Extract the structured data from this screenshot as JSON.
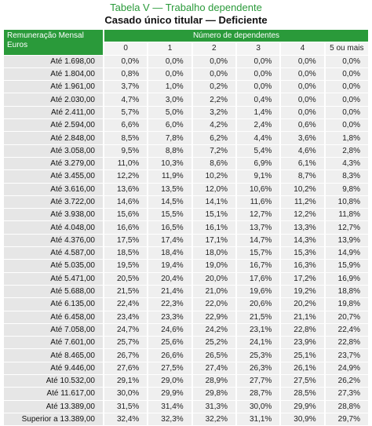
{
  "title": "Tabela V — Trabalho dependente",
  "subtitle": "Casado único titular — Deficiente",
  "table": {
    "row_header": "Remuneração Mensal Euros",
    "group_header": "Número de dependentes",
    "columns": [
      "0",
      "1",
      "2",
      "3",
      "4",
      "5 ou mais"
    ],
    "rows": [
      [
        "Até 1.698,00",
        "0,0%",
        "0,0%",
        "0,0%",
        "0,0%",
        "0,0%",
        "0,0%"
      ],
      [
        "Até 1.804,00",
        "0,8%",
        "0,0%",
        "0,0%",
        "0,0%",
        "0,0%",
        "0,0%"
      ],
      [
        "Até 1.961,00",
        "3,7%",
        "1,0%",
        "0,2%",
        "0,0%",
        "0,0%",
        "0,0%"
      ],
      [
        "Até 2.030,00",
        "4,7%",
        "3,0%",
        "2,2%",
        "0,4%",
        "0,0%",
        "0,0%"
      ],
      [
        "Até 2.411,00",
        "5,7%",
        "5,0%",
        "3,2%",
        "1,4%",
        "0,0%",
        "0,0%"
      ],
      [
        "Até 2.594,00",
        "6,6%",
        "6,0%",
        "4,2%",
        "2,4%",
        "0,6%",
        "0,0%"
      ],
      [
        "Até 2.848,00",
        "8,5%",
        "7,8%",
        "6,2%",
        "4,4%",
        "3,6%",
        "1,8%"
      ],
      [
        "Até 3.058,00",
        "9,5%",
        "8,8%",
        "7,2%",
        "5,4%",
        "4,6%",
        "2,8%"
      ],
      [
        "Até 3.279,00",
        "11,0%",
        "10,3%",
        "8,6%",
        "6,9%",
        "6,1%",
        "4,3%"
      ],
      [
        "Até 3.455,00",
        "12,2%",
        "11,9%",
        "10,2%",
        "9,1%",
        "8,7%",
        "8,3%"
      ],
      [
        "Até 3.616,00",
        "13,6%",
        "13,5%",
        "12,0%",
        "10,6%",
        "10,2%",
        "9,8%"
      ],
      [
        "Até 3.722,00",
        "14,6%",
        "14,5%",
        "14,1%",
        "11,6%",
        "11,2%",
        "10,8%"
      ],
      [
        "Até 3.938,00",
        "15,6%",
        "15,5%",
        "15,1%",
        "12,7%",
        "12,2%",
        "11,8%"
      ],
      [
        "Até 4.048,00",
        "16,6%",
        "16,5%",
        "16,1%",
        "13,7%",
        "13,3%",
        "12,7%"
      ],
      [
        "Até 4.376,00",
        "17,5%",
        "17,4%",
        "17,1%",
        "14,7%",
        "14,3%",
        "13,9%"
      ],
      [
        "Até 4.587,00",
        "18,5%",
        "18,4%",
        "18,0%",
        "15,7%",
        "15,3%",
        "14,9%"
      ],
      [
        "Até 5.035,00",
        "19,5%",
        "19,4%",
        "19,0%",
        "16,7%",
        "16,3%",
        "15,9%"
      ],
      [
        "Até 5.471,00",
        "20,5%",
        "20,4%",
        "20,0%",
        "17,6%",
        "17,2%",
        "16,9%"
      ],
      [
        "Até 5.688,00",
        "21,5%",
        "21,4%",
        "21,0%",
        "19,6%",
        "19,2%",
        "18,8%"
      ],
      [
        "Até 6.135,00",
        "22,4%",
        "22,3%",
        "22,0%",
        "20,6%",
        "20,2%",
        "19,8%"
      ],
      [
        "Até 6.458,00",
        "23,4%",
        "23,3%",
        "22,9%",
        "21,5%",
        "21,1%",
        "20,7%"
      ],
      [
        "Até 7.058,00",
        "24,7%",
        "24,6%",
        "24,2%",
        "23,1%",
        "22,8%",
        "22,4%"
      ],
      [
        "Até 7.601,00",
        "25,7%",
        "25,6%",
        "25,2%",
        "24,1%",
        "23,9%",
        "22,8%"
      ],
      [
        "Até 8.465,00",
        "26,7%",
        "26,6%",
        "26,5%",
        "25,3%",
        "25,1%",
        "23,7%"
      ],
      [
        "Até 9.446,00",
        "27,6%",
        "27,5%",
        "27,4%",
        "26,3%",
        "26,1%",
        "24,9%"
      ],
      [
        "Até 10.532,00",
        "29,1%",
        "29,0%",
        "28,9%",
        "27,7%",
        "27,5%",
        "26,2%"
      ],
      [
        "Até 11.617,00",
        "30,0%",
        "29,9%",
        "29,8%",
        "28,7%",
        "28,5%",
        "27,3%"
      ],
      [
        "Até 13.389,00",
        "31,5%",
        "31,4%",
        "31,3%",
        "30,0%",
        "29,9%",
        "28,8%"
      ],
      [
        "Superior a 13.389,00",
        "32,4%",
        "32,3%",
        "32,2%",
        "31,1%",
        "30,9%",
        "29,7%"
      ]
    ]
  }
}
